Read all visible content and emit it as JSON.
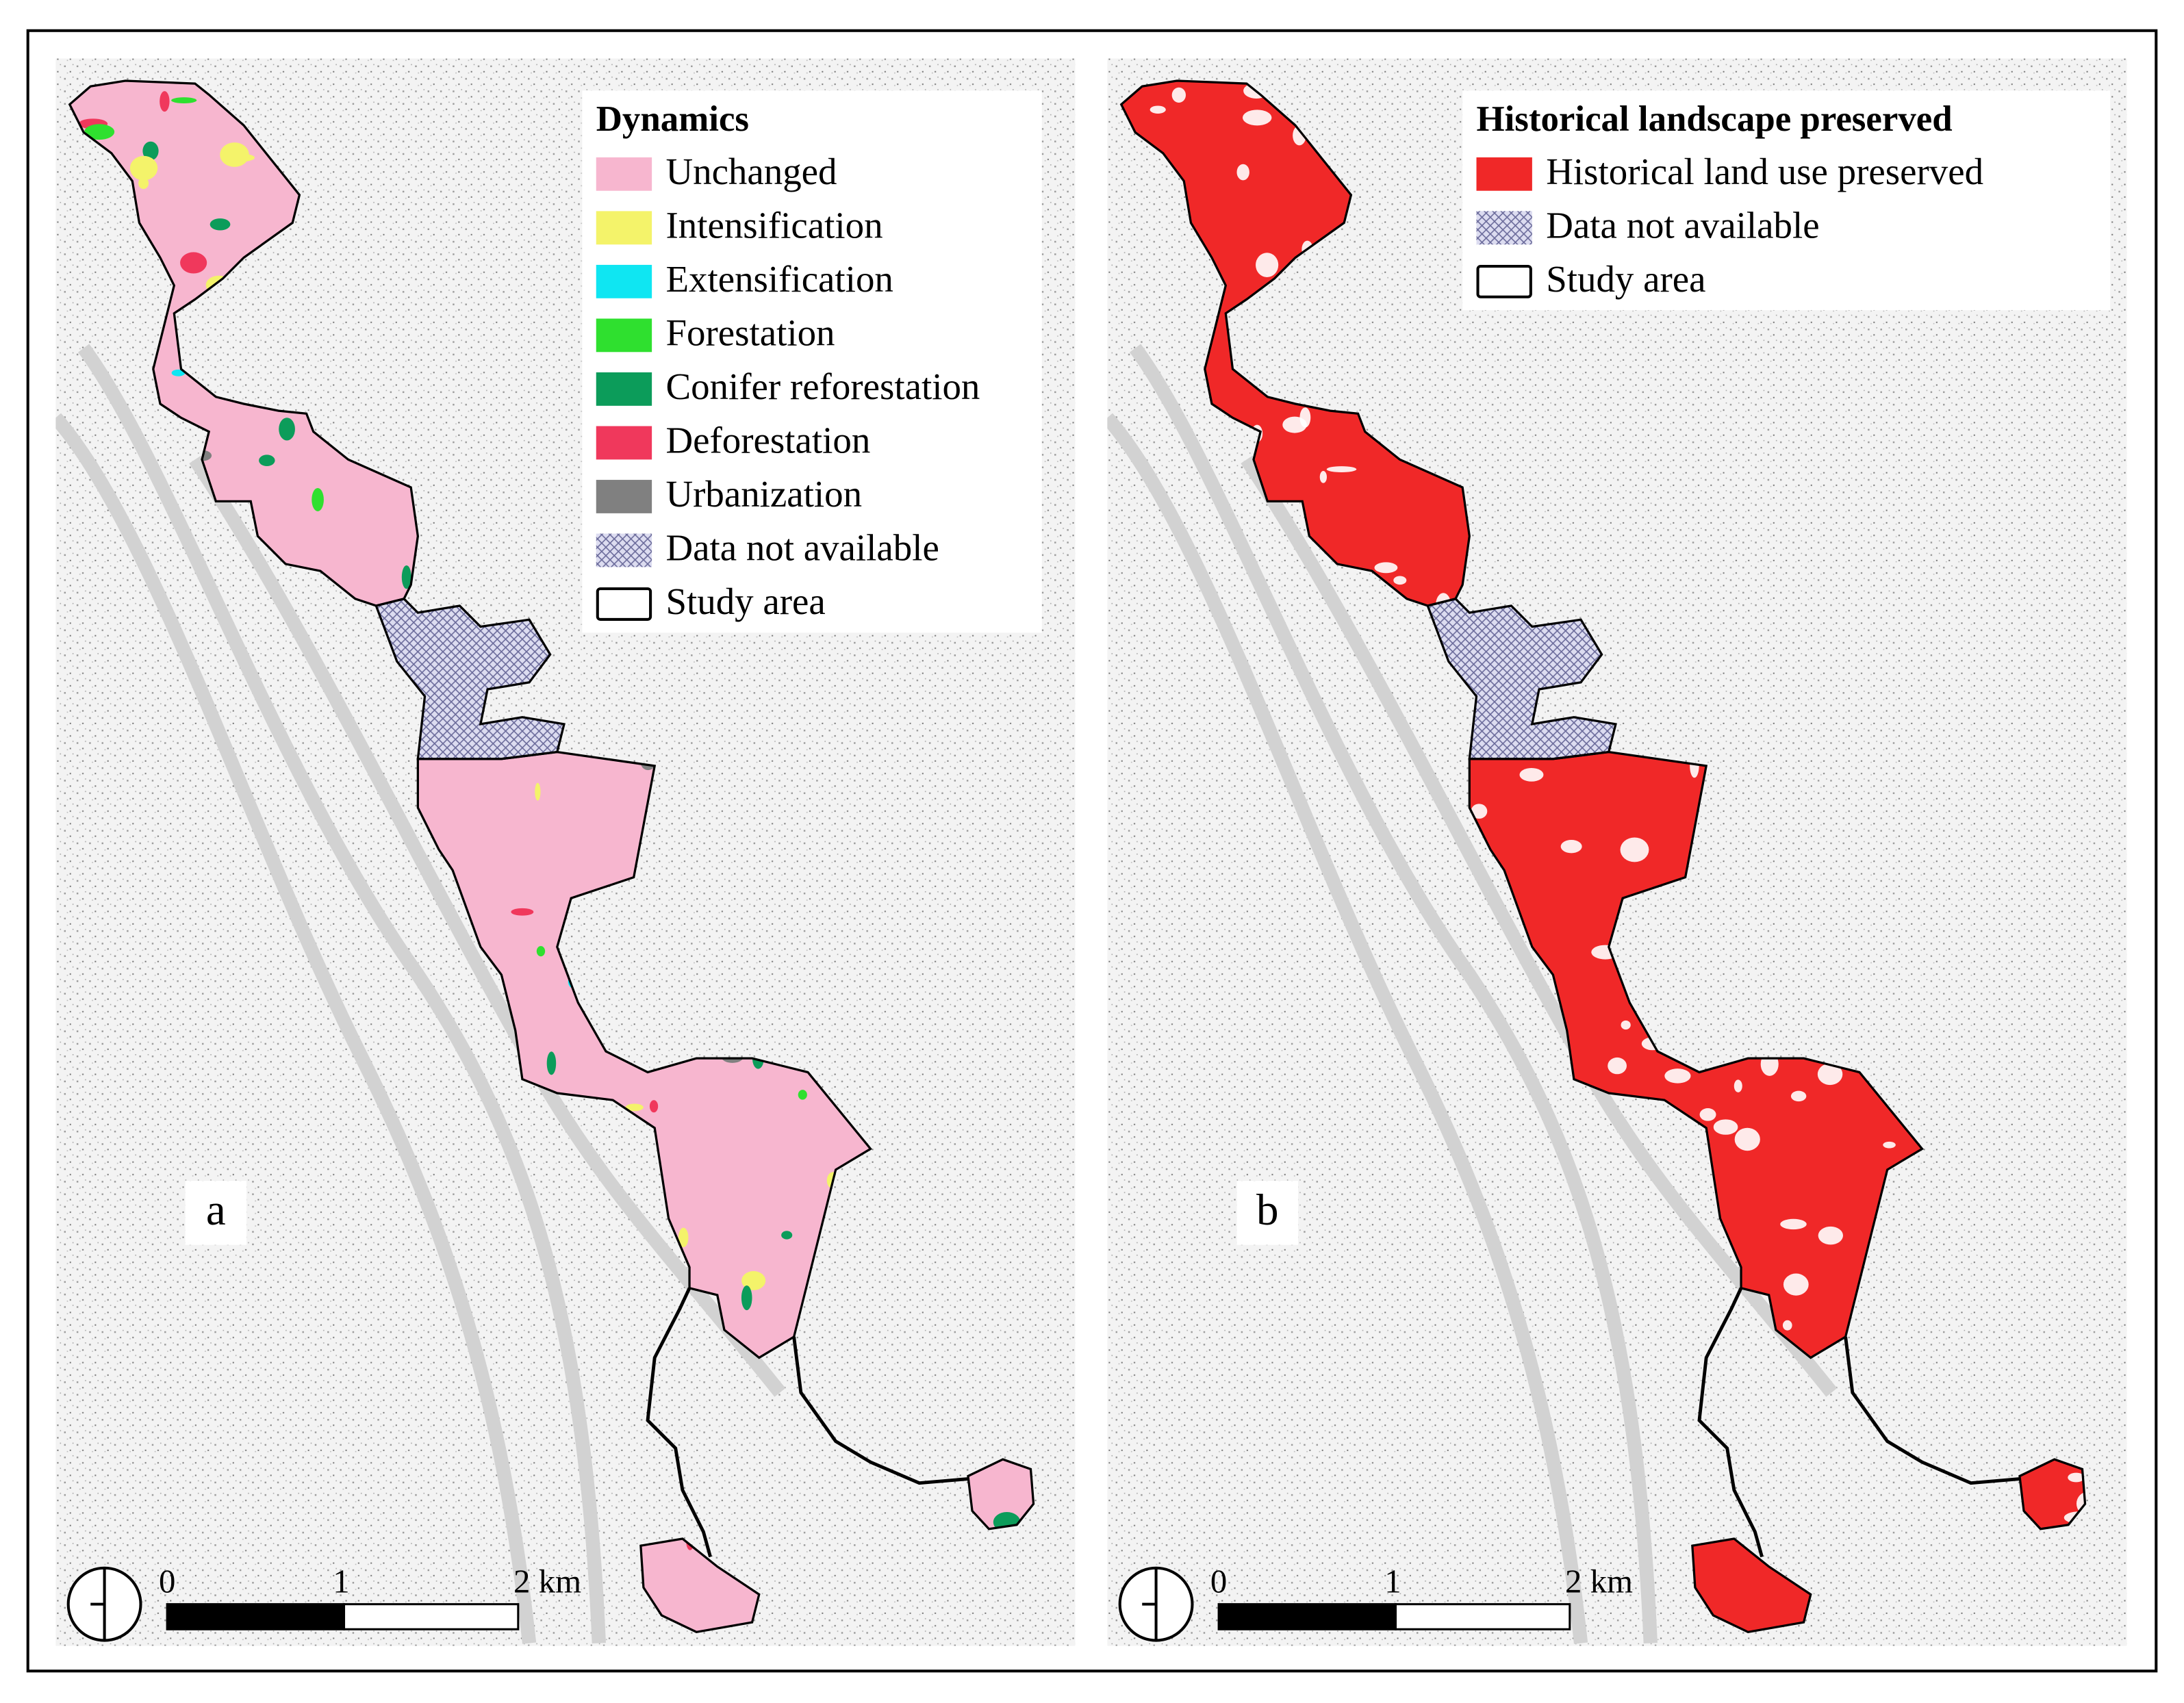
{
  "panels": [
    {
      "label": "a",
      "legend": {
        "title": "Dynamics",
        "items": [
          {
            "label": "Unchanged",
            "color": "#f7b6cf"
          },
          {
            "label": "Intensification",
            "color": "#f4f36a"
          },
          {
            "label": "Extensification",
            "color": "#0fe6f2"
          },
          {
            "label": "Forestation",
            "color": "#2fe02f"
          },
          {
            "label": "Conifer reforestation",
            "color": "#0c9c5a"
          },
          {
            "label": "Deforestation",
            "color": "#f0385c"
          },
          {
            "label": "Urbanization",
            "color": "#808080"
          },
          {
            "label": "Data not available",
            "pattern": "crosshatch"
          },
          {
            "label": "Study area",
            "outline": "#000000"
          }
        ]
      },
      "scale_bar": {
        "labels": [
          "0",
          "1",
          "2 km"
        ]
      }
    },
    {
      "label": "b",
      "legend": {
        "title": "Historical landscape preserved",
        "items": [
          {
            "label": "Historical land use preserved",
            "color": "#f02828"
          },
          {
            "label": "Data not available",
            "pattern": "crosshatch"
          },
          {
            "label": "Study area",
            "outline": "#000000"
          }
        ]
      },
      "scale_bar": {
        "labels": [
          "0",
          "1",
          "2 km"
        ]
      }
    }
  ]
}
